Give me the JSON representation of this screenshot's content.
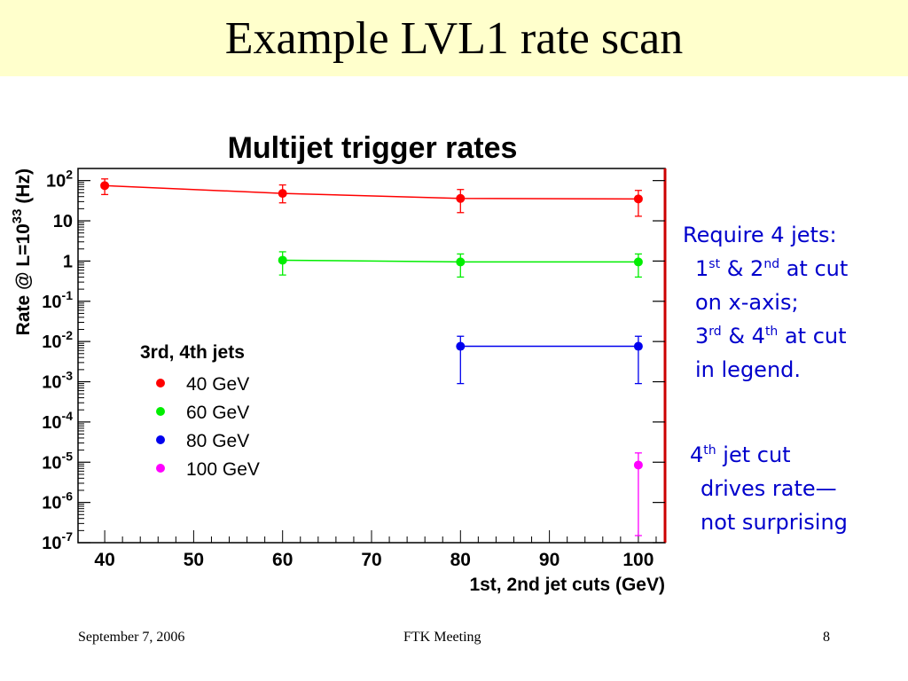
{
  "slide": {
    "title": "Example LVL1 rate scan",
    "notes": [
      {
        "parts": [
          "Require 4 jets:"
        ]
      },
      {
        "parts": [
          "1",
          "st",
          " & 2",
          "nd",
          " at cut"
        ]
      },
      {
        "parts": [
          "on x-axis;"
        ]
      },
      {
        "parts": [
          "3",
          "rd",
          " & 4",
          "th",
          " at cut"
        ]
      },
      {
        "parts": [
          "in legend."
        ]
      }
    ],
    "notes2": [
      {
        "parts": [
          "4",
          "th",
          " jet cut"
        ]
      },
      {
        "parts": [
          "drives rate—"
        ]
      },
      {
        "parts": [
          "not surprising"
        ]
      }
    ],
    "text_color": "#0000cc",
    "title_background": "#ffffcc"
  },
  "footer": {
    "date": "September 7, 2006",
    "meeting": "FTK Meeting",
    "page": "8"
  },
  "chart_data": {
    "type": "scatter",
    "title": "Multijet trigger rates",
    "xlabel": "1st, 2nd jet cuts (GeV)",
    "ylabel": "Rate @ L=10^33 (Hz)",
    "xlim": [
      37,
      103
    ],
    "ylim": [
      1e-07,
      200
    ],
    "y_scale": "log",
    "x_ticks": [
      "40",
      "50",
      "60",
      "70",
      "80",
      "90",
      "100"
    ],
    "y_ticks": [
      {
        "base": "10",
        "exp": "2"
      },
      {
        "base": "10",
        "exp": ""
      },
      {
        "base": "1",
        "exp": ""
      },
      {
        "base": "10",
        "exp": "-1"
      },
      {
        "base": "10",
        "exp": "-2"
      },
      {
        "base": "10",
        "exp": "-3"
      },
      {
        "base": "10",
        "exp": "-4"
      },
      {
        "base": "10",
        "exp": "-5"
      },
      {
        "base": "10",
        "exp": "-6"
      },
      {
        "base": "10",
        "exp": "-7"
      }
    ],
    "y_tick_values": [
      100,
      10,
      1,
      0.1,
      0.01,
      0.001,
      0.0001,
      1e-05,
      1e-06,
      1e-07
    ],
    "legend_title": "3rd, 4th jets",
    "legend_position": "left",
    "series": [
      {
        "name": "40 GeV",
        "color": "#ff0000",
        "points": [
          {
            "x": 40,
            "y": 75,
            "lo": 45,
            "hi": 110
          },
          {
            "x": 60,
            "y": 48,
            "lo": 28,
            "hi": 78
          },
          {
            "x": 80,
            "y": 36,
            "lo": 16,
            "hi": 60
          },
          {
            "x": 100,
            "y": 35,
            "lo": 13,
            "hi": 57
          }
        ]
      },
      {
        "name": "60 GeV",
        "color": "#00ee00",
        "points": [
          {
            "x": 60,
            "y": 1.05,
            "lo": 0.45,
            "hi": 1.7
          },
          {
            "x": 80,
            "y": 0.95,
            "lo": 0.4,
            "hi": 1.5
          },
          {
            "x": 100,
            "y": 0.95,
            "lo": 0.4,
            "hi": 1.5
          }
        ]
      },
      {
        "name": "80 GeV",
        "color": "#0000ee",
        "points": [
          {
            "x": 80,
            "y": 0.0076,
            "lo": 0.0009,
            "hi": 0.0135
          },
          {
            "x": 100,
            "y": 0.0076,
            "lo": 0.0009,
            "hi": 0.0135
          }
        ]
      },
      {
        "name": "100 GeV",
        "color": "#ff00ff",
        "points": [
          {
            "x": 100,
            "y": 8.5e-06,
            "lo": 1.5e-07,
            "hi": 1.7e-05
          }
        ]
      }
    ]
  }
}
